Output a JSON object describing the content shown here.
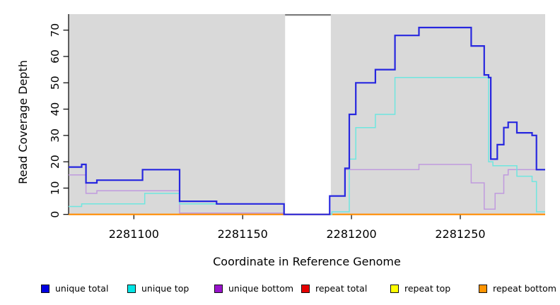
{
  "chart_data": {
    "type": "line",
    "subtype": "step-coverage",
    "title": "",
    "xlabel": "Coordinate in Reference Genome",
    "ylabel": "Read Coverage Depth",
    "xlim": [
      2281070,
      2281289
    ],
    "ylim": [
      0,
      76
    ],
    "x_ticks": [
      2281100,
      2281150,
      2281200,
      2281250
    ],
    "y_ticks": [
      0,
      10,
      20,
      30,
      40,
      50,
      60,
      70
    ],
    "grid": false,
    "legend_position": "bottom",
    "panel_background": "#d9d9d9",
    "gap_region": {
      "x_start": 2281169.5,
      "x_end": 2281190.5,
      "fill": "#ffffff",
      "top_border": "#7d7d7d"
    },
    "series": [
      {
        "name": "repeat total",
        "color": "#e60000",
        "line_width": 1.5,
        "steps": [
          [
            2281070,
            0
          ]
        ]
      },
      {
        "name": "repeat top",
        "color": "#ffff00",
        "line_width": 1.5,
        "steps": [
          [
            2281070,
            0
          ]
        ]
      },
      {
        "name": "repeat bottom",
        "color": "#ff8c00",
        "line_width": 2.1,
        "steps": [
          [
            2281070,
            0
          ]
        ]
      },
      {
        "name": "unique bottom",
        "color": "#c09ade",
        "line_width": 1.5,
        "steps": [
          [
            2281070,
            15
          ],
          [
            2281078,
            8
          ],
          [
            2281083,
            9
          ],
          [
            2281121,
            0.5
          ],
          [
            2281169,
            0
          ],
          [
            2281190,
            7
          ],
          [
            2281197,
            17
          ],
          [
            2281231,
            19
          ],
          [
            2281255,
            12
          ],
          [
            2281261,
            2
          ],
          [
            2281266,
            8
          ],
          [
            2281270,
            15
          ],
          [
            2281272,
            17
          ]
        ]
      },
      {
        "name": "unique top",
        "color": "#6fe6df",
        "line_width": 1.5,
        "steps": [
          [
            2281070,
            3
          ],
          [
            2281076,
            4
          ],
          [
            2281105,
            8
          ],
          [
            2281121,
            4
          ],
          [
            2281169,
            0
          ],
          [
            2281191,
            1
          ],
          [
            2281199,
            21
          ],
          [
            2281202,
            33
          ],
          [
            2281211,
            38
          ],
          [
            2281220,
            52
          ],
          [
            2281263,
            20
          ],
          [
            2281265,
            18.5
          ],
          [
            2281276,
            14.5
          ],
          [
            2281283,
            12.5
          ],
          [
            2281285,
            1
          ]
        ]
      },
      {
        "name": "unique total",
        "color": "#2727df",
        "line_width": 2.2,
        "steps": [
          [
            2281070,
            18
          ],
          [
            2281076,
            19
          ],
          [
            2281078,
            12
          ],
          [
            2281083,
            13
          ],
          [
            2281104,
            17
          ],
          [
            2281121,
            5
          ],
          [
            2281138,
            4
          ],
          [
            2281169,
            0
          ],
          [
            2281190,
            7
          ],
          [
            2281197,
            17.5
          ],
          [
            2281199,
            38
          ],
          [
            2281202,
            50
          ],
          [
            2281211,
            55
          ],
          [
            2281220,
            68
          ],
          [
            2281231,
            71
          ],
          [
            2281255,
            64
          ],
          [
            2281261,
            53
          ],
          [
            2281263,
            52
          ],
          [
            2281264,
            21
          ],
          [
            2281267,
            26.5
          ],
          [
            2281270,
            33
          ],
          [
            2281272,
            35
          ],
          [
            2281276,
            31
          ],
          [
            2281283,
            30
          ],
          [
            2281285,
            17
          ]
        ]
      }
    ],
    "legend": [
      {
        "label": "unique total",
        "color": "#0000e1"
      },
      {
        "label": "unique top",
        "color": "#00e5e5"
      },
      {
        "label": "unique bottom",
        "color": "#9913cb"
      },
      {
        "label": "repeat total",
        "color": "#e60000"
      },
      {
        "label": "repeat top",
        "color": "#ffff00"
      },
      {
        "label": "repeat bottom",
        "color": "#ff9400"
      }
    ]
  }
}
